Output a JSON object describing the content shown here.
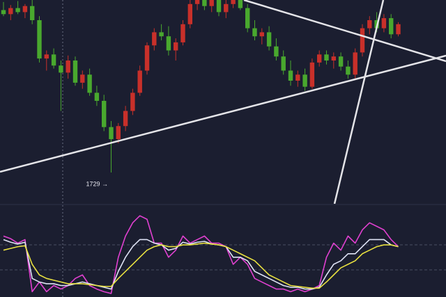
{
  "chart_data": [
    {
      "type": "candlestick",
      "open": [
        1890,
        1886,
        1892,
        1888,
        1894,
        1880,
        1842,
        1846,
        1835,
        1828,
        1840,
        1818,
        1826,
        1808,
        1800,
        1774,
        1762,
        1775,
        1790,
        1808,
        1830,
        1855,
        1868,
        1864,
        1850,
        1858,
        1876,
        1896,
        1905,
        1894,
        1902,
        1888,
        1896,
        1904,
        1892,
        1872,
        1864,
        1868,
        1854,
        1844,
        1830,
        1820,
        1826,
        1814,
        1838,
        1846,
        1840,
        1844,
        1834,
        1826,
        1848,
        1872,
        1880,
        1872,
        1882,
        1866
      ],
      "high": [
        1898,
        1895,
        1899,
        1896,
        1900,
        1884,
        1850,
        1852,
        1840,
        1845,
        1844,
        1830,
        1832,
        1815,
        1806,
        1780,
        1778,
        1795,
        1812,
        1835,
        1858,
        1872,
        1876,
        1874,
        1862,
        1880,
        1900,
        1910,
        1912,
        1906,
        1910,
        1900,
        1908,
        1906,
        1896,
        1880,
        1872,
        1874,
        1862,
        1850,
        1840,
        1830,
        1832,
        1842,
        1850,
        1850,
        1848,
        1848,
        1840,
        1852,
        1876,
        1884,
        1888,
        1886,
        1886,
        1878
      ],
      "low": [
        1884,
        1880,
        1886,
        1882,
        1876,
        1838,
        1830,
        1832,
        1790,
        1822,
        1815,
        1812,
        1805,
        1795,
        1770,
        1729,
        1758,
        1770,
        1786,
        1805,
        1826,
        1850,
        1860,
        1845,
        1840,
        1855,
        1872,
        1890,
        1890,
        1888,
        1884,
        1882,
        1892,
        1890,
        1868,
        1860,
        1856,
        1850,
        1840,
        1826,
        1815,
        1814,
        1810,
        1812,
        1834,
        1836,
        1832,
        1830,
        1822,
        1822,
        1844,
        1866,
        1868,
        1868,
        1862,
        1864
      ],
      "close": [
        1886,
        1892,
        1888,
        1894,
        1880,
        1842,
        1846,
        1835,
        1828,
        1840,
        1818,
        1826,
        1808,
        1800,
        1774,
        1762,
        1775,
        1790,
        1808,
        1830,
        1855,
        1868,
        1864,
        1850,
        1858,
        1876,
        1896,
        1905,
        1894,
        1902,
        1888,
        1896,
        1904,
        1892,
        1872,
        1864,
        1868,
        1854,
        1844,
        1830,
        1820,
        1826,
        1814,
        1838,
        1846,
        1840,
        1844,
        1834,
        1826,
        1848,
        1872,
        1880,
        1872,
        1882,
        1866,
        1876
      ],
      "up_color": "#c8302a",
      "down_color": "#49a82e",
      "ylim": [
        1700,
        1900
      ],
      "annotation": {
        "text": "1729 →",
        "index": 15
      }
    },
    {
      "type": "line",
      "ylim": [
        0,
        100
      ],
      "series": [
        {
          "color": "#e040d0",
          "values": [
            69,
            66,
            61,
            65,
            6,
            17,
            6,
            13,
            9,
            13,
            21,
            25,
            13,
            9,
            6,
            4,
            45,
            69,
            84,
            92,
            88,
            61,
            61,
            45,
            53,
            69,
            61,
            65,
            69,
            61,
            61,
            57,
            37,
            45,
            37,
            21,
            17,
            13,
            9,
            9,
            6,
            9,
            6,
            9,
            13,
            45,
            61,
            53,
            69,
            61,
            76,
            84,
            80,
            76,
            65,
            57
          ]
        },
        {
          "color": "#dfe3f5",
          "values": [
            65,
            62,
            60,
            62,
            21,
            17,
            15,
            15,
            13,
            13,
            15,
            17,
            15,
            13,
            11,
            9,
            29,
            45,
            57,
            65,
            65,
            61,
            59,
            53,
            55,
            62,
            60,
            62,
            63,
            60,
            59,
            57,
            45,
            45,
            41,
            29,
            25,
            21,
            17,
            13,
            11,
            11,
            9,
            9,
            11,
            25,
            37,
            41,
            49,
            49,
            57,
            65,
            65,
            65,
            59,
            57
          ]
        },
        {
          "color": "#e8e040",
          "values": [
            53,
            55,
            57,
            58,
            37,
            25,
            21,
            19,
            17,
            15,
            15,
            15,
            14,
            13,
            12,
            12,
            21,
            29,
            37,
            45,
            53,
            57,
            59,
            57,
            57,
            59,
            59,
            60,
            61,
            60,
            59,
            57,
            53,
            49,
            45,
            41,
            33,
            25,
            21,
            17,
            13,
            12,
            11,
            10,
            10,
            17,
            25,
            33,
            37,
            41,
            49,
            53,
            57,
            59,
            59,
            57
          ]
        }
      ]
    }
  ]
}
